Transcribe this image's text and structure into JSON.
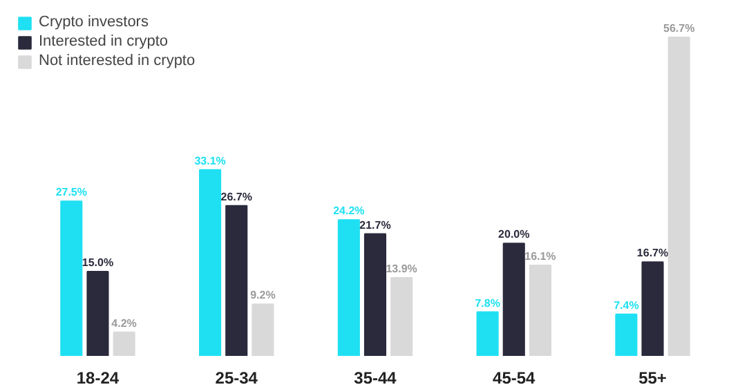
{
  "chart_data": {
    "type": "bar",
    "categories": [
      "18-24",
      "25-34",
      "35-44",
      "45-54",
      "55+"
    ],
    "series": [
      {
        "name": "Crypto investors",
        "color": "#1fe0f2",
        "values": [
          27.5,
          33.1,
          24.2,
          7.8,
          7.4
        ],
        "value_labels": [
          "27.5%",
          "33.1%",
          "24.2%",
          "7.8%",
          "7.4%"
        ]
      },
      {
        "name": "Interested in crypto",
        "color": "#2a2a3c",
        "values": [
          15.0,
          26.7,
          21.7,
          20.0,
          16.7
        ],
        "value_labels": [
          "15.0%",
          "26.7%",
          "21.7%",
          "20.0%",
          "16.7%"
        ]
      },
      {
        "name": "Not interested in crypto",
        "color": "#d9d9d9",
        "values": [
          4.2,
          9.2,
          13.9,
          16.1,
          56.7
        ],
        "value_labels": [
          "4.2%",
          "9.2%",
          "13.9%",
          "16.1%",
          "56.7%"
        ]
      }
    ],
    "legend": "top left",
    "grid": false
  }
}
